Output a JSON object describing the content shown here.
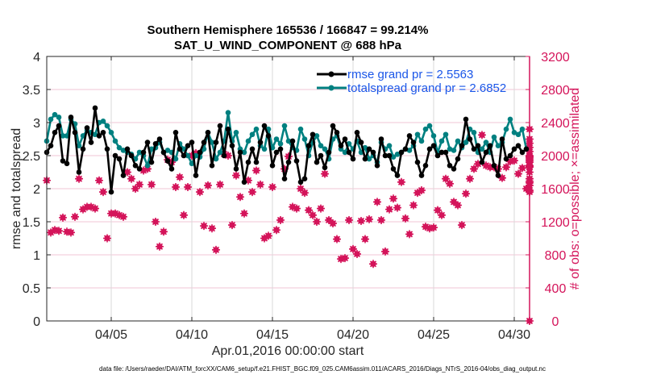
{
  "chart_data": {
    "type": "line",
    "title": [
      "Southern Hemisphere 165536 / 166847 = 99.214%",
      "SAT_U_WIND_COMPONENT @ 688 hPa"
    ],
    "xlabel": "Apr.01,2016 00:00:00 start",
    "ylabel": "rmse and totalspread",
    "ylabel_right": "# of obs: o=possible; ×=assimilated",
    "xlim_days": [
      1,
      31.5
    ],
    "ylim": [
      0,
      4
    ],
    "ylim_right": [
      0,
      3200
    ],
    "x_ticks": [
      {
        "day": 5,
        "label": "04/05"
      },
      {
        "day": 10,
        "label": "04/10"
      },
      {
        "day": 15,
        "label": "04/15"
      },
      {
        "day": 20,
        "label": "04/20"
      },
      {
        "day": 25,
        "label": "04/25"
      },
      {
        "day": 30,
        "label": "04/30"
      }
    ],
    "y_ticks": [
      "0",
      "0.5",
      "1",
      "1.5",
      "2",
      "2.5",
      "3",
      "3.5",
      "4"
    ],
    "y_ticks_values": [
      0,
      0.5,
      1,
      1.5,
      2,
      2.5,
      3,
      3.5,
      4
    ],
    "y_right_ticks": [
      "0",
      "400",
      "800",
      "1200",
      "1600",
      "2000",
      "2400",
      "2800",
      "3200"
    ],
    "y_right_ticks_values": [
      0,
      400,
      800,
      1200,
      1600,
      2000,
      2400,
      2800,
      3200
    ],
    "grid": true,
    "legend_position": "top-right",
    "colors": {
      "rmse": "#000000",
      "totalspread": "#008080",
      "obs": "#d4145a",
      "grid": "#f2c6d6",
      "vgrid": "#d9d9d9"
    },
    "x_start_day": 1.0,
    "x_step_days": 0.25,
    "series": [
      {
        "name": "rmse grand pr = 2.5563",
        "axis": "left",
        "values": [
          2.55,
          2.65,
          2.85,
          2.95,
          2.42,
          2.38,
          3.08,
          2.85,
          2.25,
          2.6,
          2.92,
          2.7,
          3.22,
          2.8,
          2.85,
          2.6,
          1.95,
          2.5,
          2.45,
          2.2,
          2.6,
          2.5,
          2.35,
          2.3,
          2.55,
          2.7,
          2.4,
          2.68,
          2.75,
          2.55,
          2.42,
          2.3,
          2.85,
          2.6,
          2.5,
          2.65,
          2.7,
          2.2,
          2.55,
          2.7,
          2.85,
          2.35,
          2.7,
          2.95,
          2.5,
          2.9,
          2.65,
          2.3,
          2.55,
          2.1,
          2.4,
          2.6,
          2.4,
          2.7,
          2.95,
          2.8,
          2.35,
          2.55,
          2.6,
          2.15,
          2.4,
          2.72,
          2.42,
          2.1,
          2.15,
          2.65,
          2.82,
          2.4,
          2.5,
          2.32,
          2.55,
          2.95,
          2.85,
          2.65,
          2.75,
          2.55,
          2.45,
          2.85,
          2.7,
          2.45,
          2.6,
          2.55,
          2.35,
          2.75,
          2.5,
          2.5,
          2.3,
          2.2,
          2.55,
          2.6,
          2.8,
          2.7,
          2.4,
          2.2,
          2.35,
          2.6,
          2.65,
          2.5,
          2.55,
          2.55,
          2.35,
          2.3,
          2.45,
          2.65,
          3.05,
          2.75,
          2.6,
          2.65,
          2.4,
          2.55,
          2.65,
          2.35,
          2.2,
          2.75,
          2.45,
          2.5,
          2.6,
          2.65,
          2.55,
          2.6,
          2.8,
          2.4,
          2.55,
          2.65,
          2.75,
          2.6,
          2.7,
          2.2,
          2.45,
          2.35,
          2.5,
          2.45,
          2.6,
          2.7,
          2.5,
          2.4
        ],
        "marker": "dot"
      },
      {
        "name": "totalspread grand pr = 2.6852",
        "axis": "left",
        "values": [
          2.72,
          3.05,
          3.12,
          3.08,
          2.8,
          2.8,
          3.05,
          2.98,
          2.65,
          2.8,
          2.88,
          2.85,
          2.82,
          3.0,
          3.02,
          2.95,
          2.85,
          2.72,
          2.62,
          2.58,
          2.55,
          2.52,
          2.45,
          2.55,
          2.5,
          2.35,
          2.6,
          2.62,
          2.7,
          2.55,
          2.58,
          2.55,
          2.45,
          2.68,
          2.6,
          2.5,
          2.38,
          2.5,
          2.48,
          2.6,
          2.85,
          2.7,
          2.45,
          2.55,
          2.72,
          3.15,
          2.72,
          2.85,
          2.6,
          2.55,
          2.72,
          2.82,
          2.9,
          2.65,
          2.6,
          2.9,
          2.62,
          2.75,
          2.68,
          2.95,
          2.72,
          2.62,
          2.58,
          2.9,
          2.75,
          2.5,
          2.7,
          2.8,
          2.65,
          2.6,
          2.45,
          2.75,
          2.8,
          2.6,
          2.55,
          2.68,
          2.6,
          2.72,
          2.55,
          2.62,
          2.45,
          2.5,
          2.4,
          2.7,
          2.6,
          2.65,
          2.48,
          2.52,
          2.55,
          2.6,
          2.58,
          2.65,
          2.82,
          2.72,
          2.9,
          2.95,
          2.8,
          2.55,
          2.72,
          2.82,
          2.6,
          2.58,
          2.72,
          2.62,
          2.7,
          2.9,
          2.85,
          2.55,
          2.6,
          2.7,
          2.55,
          2.78,
          2.65,
          2.7,
          2.9,
          3.05,
          2.85,
          2.82,
          2.9,
          2.6,
          2.8,
          2.85,
          2.55,
          2.55,
          2.9,
          2.8,
          2.65,
          2.55,
          2.55,
          2.75,
          2.8,
          2.9,
          2.75,
          2.82,
          2.6,
          2.65
        ],
        "marker": "dot"
      },
      {
        "name": "# of obs assimilated",
        "axis": "right",
        "values": [
          1700,
          1070,
          1100,
          1090,
          1250,
          1080,
          1070,
          1260,
          1720,
          1350,
          1380,
          1380,
          1360,
          1700,
          1560,
          1000,
          1300,
          1300,
          1280,
          1260,
          1800,
          1720,
          1600,
          1650,
          1820,
          1840,
          1650,
          1200,
          900,
          1080,
          1950,
          1920,
          1620,
          1740,
          1280,
          1620,
          2000,
          2030,
          1560,
          1150,
          1640,
          1120,
          860,
          1650,
          2020,
          2000,
          1160,
          1760,
          1500,
          1300,
          1700,
          1560,
          1820,
          1650,
          1000,
          1030,
          1620,
          1100,
          1220,
          1840,
          1990,
          1380,
          1360,
          1600,
          1550,
          1340,
          1280,
          1200,
          1360,
          1780,
          1220,
          1180,
          990,
          750,
          760,
          1220,
          870,
          810,
          1210,
          990,
          1230,
          690,
          1440,
          1220,
          840,
          1350,
          1480,
          1370,
          1680,
          1240,
          1050,
          1400,
          1550,
          1580,
          1140,
          1120,
          1130,
          1340,
          1280,
          1720,
          1660,
          1440,
          1400,
          1160,
          1540,
          1720,
          1840,
          1900,
          2250,
          1880,
          1860,
          1860,
          1840,
          1730,
          1860,
          1930,
          1940,
          1780,
          1850,
          1600,
          1720,
          2150,
          2000,
          1960,
          1670,
          1560,
          1580,
          1640,
          1800,
          1880,
          1860,
          1920,
          1690,
          1720,
          2320,
          2200,
          1870,
          1940,
          1990,
          2050,
          1980,
          2100,
          0
        ],
        "marker": "asterisk"
      }
    ]
  },
  "legend": {
    "items": [
      {
        "label": "rmse grand pr = 2.5563",
        "color": "#000000"
      },
      {
        "label": "totalspread grand pr = 2.6852",
        "color": "#008080"
      }
    ]
  },
  "footnote": "data file: /Users/raeder/DAI/ATM_forcXX/CAM6_setup/f.e21.FHIST_BGC.f09_025.CAM6assim.011/ACARS_2016/Diags_NTrS_2016-04/obs_diag_output.nc"
}
